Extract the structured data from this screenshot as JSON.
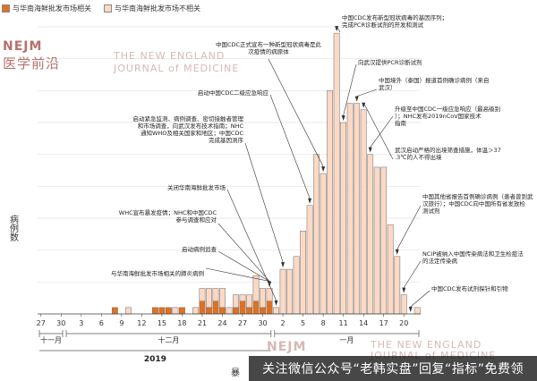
{
  "legend": {
    "related_label": "与华南海鲜批发市场相关",
    "unrelated_label": "与华南海鲜批发市场不相关"
  },
  "watermark": {
    "logo": "NEJM",
    "cn_name": "医学前沿",
    "en_line1": "THE NEW ENGLAND",
    "en_line2": "JOURNAL of MEDICINE"
  },
  "footer": {
    "banner_text": "关注微信公众号“老韩实盘”回复“指标”免费领",
    "xaxis_title_partial": "暴"
  },
  "chart_data": {
    "type": "bar",
    "stacked": true,
    "ylabel": "病例数",
    "ylim": [
      0,
      45
    ],
    "yticks": [
      0,
      5,
      10,
      15,
      20,
      25,
      30,
      35,
      40,
      45
    ],
    "grid": true,
    "legend_position": "top-left",
    "colors": {
      "related": "#e2701f",
      "unrelated": "#fbd9c5",
      "edge": "#6b6b6b"
    },
    "x_tick_labels": [
      "27",
      "30",
      "3",
      "6",
      "9",
      "12",
      "15",
      "18",
      "21",
      "24",
      "27",
      "30",
      "2",
      "5",
      "8",
      "11",
      "14",
      "17",
      "20"
    ],
    "month_labels": [
      "十一月",
      "十二月",
      "一月"
    ],
    "year_label": "2019",
    "dates": [
      "11-27",
      "11-28",
      "11-29",
      "11-30",
      "12-01",
      "12-02",
      "12-03",
      "12-04",
      "12-05",
      "12-06",
      "12-07",
      "12-08",
      "12-09",
      "12-10",
      "12-11",
      "12-12",
      "12-13",
      "12-14",
      "12-15",
      "12-16",
      "12-17",
      "12-18",
      "12-19",
      "12-20",
      "12-21",
      "12-22",
      "12-23",
      "12-24",
      "12-25",
      "12-26",
      "12-27",
      "12-28",
      "12-29",
      "12-30",
      "12-31",
      "01-01",
      "01-02",
      "01-03",
      "01-04",
      "01-05",
      "01-06",
      "01-07",
      "01-08",
      "01-09",
      "01-10",
      "01-11",
      "01-12",
      "01-13",
      "01-14",
      "01-15",
      "01-16",
      "01-17",
      "01-18",
      "01-19",
      "01-20",
      "01-21",
      "01-22"
    ],
    "series": [
      {
        "name": "与华南海鲜批发市场相关",
        "values": [
          0,
          0,
          0,
          0,
          0,
          0,
          0,
          0,
          0,
          0,
          0,
          1,
          0,
          0,
          0,
          0,
          0,
          1,
          1,
          1,
          0,
          1,
          0,
          0,
          2,
          1,
          2,
          1,
          0,
          1,
          2,
          1,
          2,
          1,
          2,
          0,
          0,
          0,
          0,
          0,
          0,
          0,
          0,
          0,
          0,
          0,
          0,
          0,
          0,
          0,
          0,
          0,
          0,
          0,
          0,
          0,
          0
        ]
      },
      {
        "name": "与华南海鲜批发市场不相关",
        "values": [
          0,
          0,
          0,
          0,
          0,
          0,
          0,
          0,
          0,
          0,
          0,
          0,
          0,
          1,
          0,
          0,
          0,
          0,
          0,
          0,
          1,
          0,
          0,
          1,
          2,
          3,
          2,
          3,
          1,
          2,
          1,
          2,
          4,
          3,
          2,
          1,
          7,
          7,
          9,
          13,
          17,
          25,
          22,
          35,
          44,
          30,
          33,
          33,
          32,
          25,
          23,
          23,
          14,
          9,
          3,
          0,
          1
        ]
      }
    ],
    "annotations": [
      {
        "label": "与华南海鲜批发市场相关的肺炎病例",
        "date": "12-31"
      },
      {
        "label": "启动病例追查",
        "date": "12-31"
      },
      {
        "label": "WHC宣布暴发疫情；NHC和中国CDC参与调查和应对",
        "date": "12-31"
      },
      {
        "label": "关闭华南海鲜批发市场",
        "date": "01-01"
      },
      {
        "label": "启动紧急监测、病例调查、密切接触者管理和市场调查，向武汉发布技术指南；NHC通知WHO及相关国家和地区；中国CDC完成基因测序",
        "date": "01-02"
      },
      {
        "label": "启动中国CDC二级应急响应",
        "date": "01-06"
      },
      {
        "label": "中国CDC正式宣布一种新型冠状病毒是此次疫情的病原体",
        "date": "01-08"
      },
      {
        "label": "中国CDC发布新型冠状病毒的基因序列；完成PCR诊断试剂的开发和测试",
        "date": "01-10"
      },
      {
        "label": "向武汉提供PCR诊断试剂",
        "date": "01-11"
      },
      {
        "label": "中国境外（泰国）报道首例确诊病例（来自武汉）",
        "date": "01-13"
      },
      {
        "label": "升级至中国CDC一级应急响应（最高级别）；NHC发布2019nCoV国家技术指南",
        "date": "01-15"
      },
      {
        "label": "武汉启动严格的出境筛查措施，体温＞37.3℃的人不得出境",
        "date": "01-14"
      },
      {
        "label": "中国其他省报告首例确诊病例（患者曾到武汉旅行）；中国CDC向中国所有省发放检测试剂",
        "date": "01-19"
      },
      {
        "label": "NCIP被纳入中国传染病法和卫生检疫法的法定传染病",
        "date": "01-20"
      },
      {
        "label": "中国CDC发布试剂探针和引物",
        "date": "01-21"
      }
    ]
  }
}
